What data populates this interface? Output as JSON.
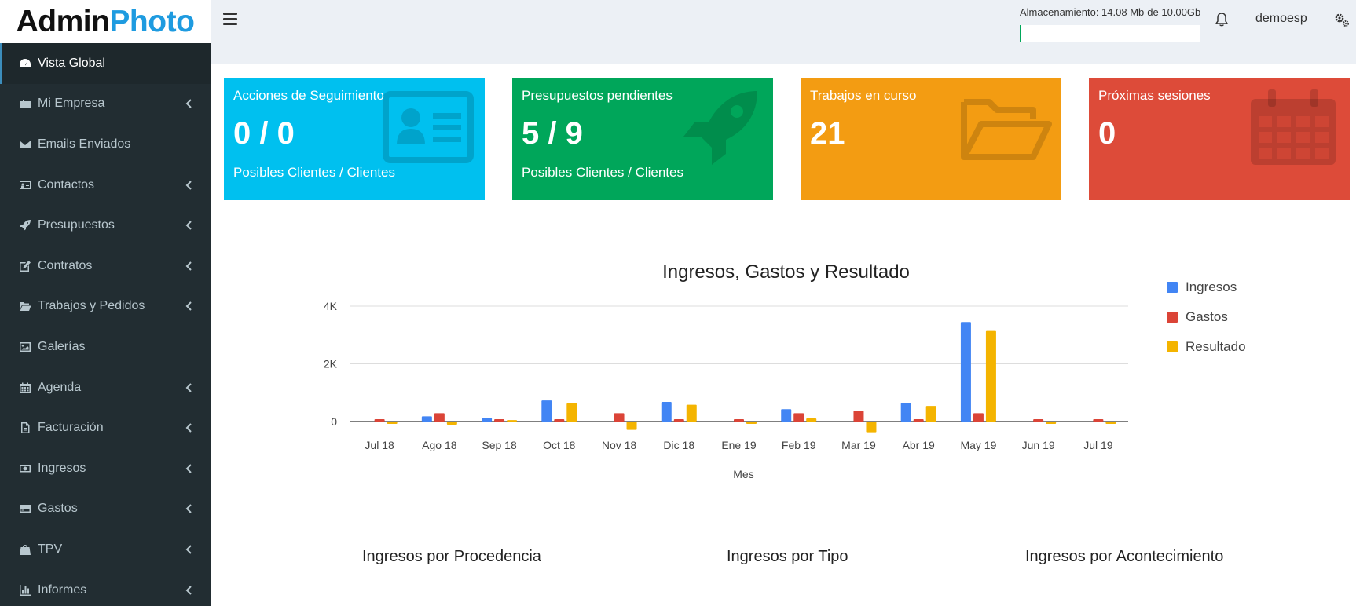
{
  "logo": {
    "part1": "Admin",
    "part2": "Photo"
  },
  "sidebar": {
    "items": [
      {
        "label": "Vista Global",
        "icon": "dashboard-icon",
        "active": true,
        "expandable": false
      },
      {
        "label": "Mi Empresa",
        "icon": "briefcase-icon",
        "active": false,
        "expandable": true
      },
      {
        "label": "Emails Enviados",
        "icon": "envelope-icon",
        "active": false,
        "expandable": false
      },
      {
        "label": "Contactos",
        "icon": "address-card-icon",
        "active": false,
        "expandable": true
      },
      {
        "label": "Presupuestos",
        "icon": "rocket-icon",
        "active": false,
        "expandable": true
      },
      {
        "label": "Contratos",
        "icon": "edit-icon",
        "active": false,
        "expandable": true
      },
      {
        "label": "Trabajos y Pedidos",
        "icon": "folder-open-icon",
        "active": false,
        "expandable": true
      },
      {
        "label": "Galerías",
        "icon": "image-icon",
        "active": false,
        "expandable": false
      },
      {
        "label": "Agenda",
        "icon": "calendar-icon",
        "active": false,
        "expandable": true
      },
      {
        "label": "Facturación",
        "icon": "file-text-icon",
        "active": false,
        "expandable": true
      },
      {
        "label": "Ingresos",
        "icon": "money-icon",
        "active": false,
        "expandable": true
      },
      {
        "label": "Gastos",
        "icon": "credit-card-icon",
        "active": false,
        "expandable": true
      },
      {
        "label": "TPV",
        "icon": "shopping-bag-icon",
        "active": false,
        "expandable": true
      },
      {
        "label": "Informes",
        "icon": "bar-chart-icon",
        "active": false,
        "expandable": true
      }
    ]
  },
  "header": {
    "storage_label": "Almacenamiento: 14.08 Mb",
    "storage_total": "de 10.00Gb",
    "storage_fraction": 0.0014,
    "username": "demoesp"
  },
  "boxes": [
    {
      "title": "Acciones de Seguimiento",
      "value": "0 / 0",
      "subtitle": "Posibles Clientes / Clientes",
      "color": "#00c0ef",
      "icon": "address-card-icon"
    },
    {
      "title": "Presupuestos pendientes",
      "value": "5 / 9",
      "subtitle": "Posibles Clientes / Clientes",
      "color": "#00a65a",
      "icon": "rocket-icon"
    },
    {
      "title": "Trabajos en curso",
      "value": "21",
      "subtitle": "",
      "color": "#f39c12",
      "icon": "folder-open-icon"
    },
    {
      "title": "Próximas sesiones",
      "value": "0",
      "subtitle": "",
      "color": "#dd4b39",
      "icon": "calendar-icon"
    }
  ],
  "chart_data": {
    "type": "bar",
    "title": "Ingresos, Gastos y Resultado",
    "xlabel": "Mes",
    "ylabel": "",
    "ylim": [
      -400,
      4000
    ],
    "yticks": [
      0,
      2000,
      4000
    ],
    "ytick_labels": [
      "0",
      "2K",
      "4K"
    ],
    "legend_position": "right",
    "categories": [
      "Jul 18",
      "Ago 18",
      "Sep 18",
      "Oct 18",
      "Nov 18",
      "Dic 18",
      "Ene 19",
      "Feb 19",
      "Mar 19",
      "Abr 19",
      "May 19",
      "Jun 19",
      "Jul 19"
    ],
    "series": [
      {
        "name": "Ingresos",
        "color": "#4285f4",
        "values": [
          0,
          180,
          130,
          730,
          0,
          680,
          0,
          430,
          0,
          640,
          3450,
          0,
          0
        ]
      },
      {
        "name": "Gastos",
        "color": "#db4437",
        "values": [
          80,
          290,
          80,
          80,
          290,
          80,
          80,
          290,
          370,
          80,
          290,
          80,
          80
        ]
      },
      {
        "name": "Resultado",
        "color": "#f4b400",
        "values": [
          -80,
          -110,
          50,
          630,
          -290,
          580,
          -80,
          110,
          -370,
          540,
          3140,
          -80,
          -80
        ]
      }
    ]
  },
  "bottom_titles": [
    "Ingresos por Procedencia",
    "Ingresos por Tipo",
    "Ingresos por Acontecimiento"
  ]
}
